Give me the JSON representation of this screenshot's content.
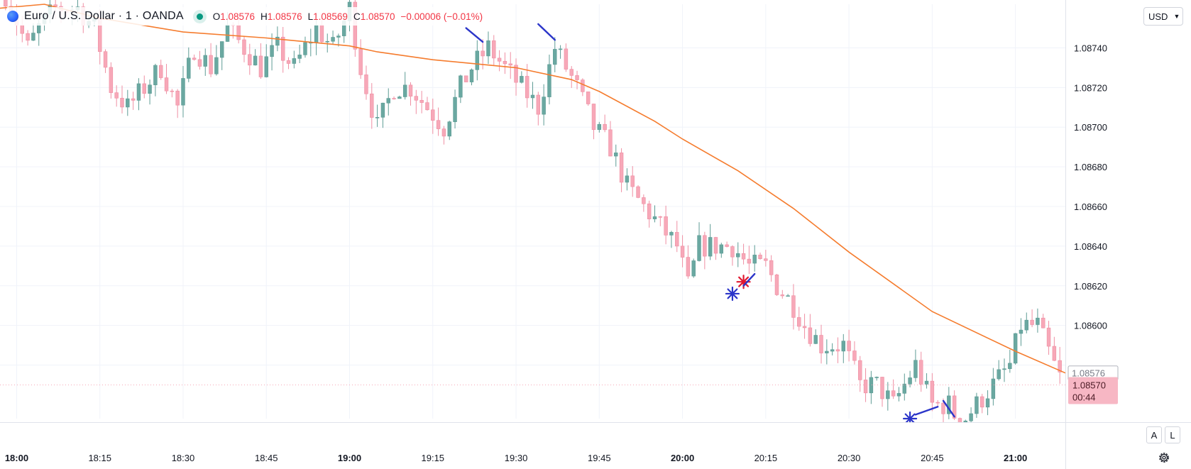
{
  "header": {
    "symbol_title": "Euro / U.S. Dollar · 1 · OANDA",
    "ohlc": [
      {
        "key": "O",
        "value": "1.08576"
      },
      {
        "key": "H",
        "value": "1.08576"
      },
      {
        "key": "L",
        "value": "1.08569"
      },
      {
        "key": "C",
        "value": "1.08570"
      }
    ],
    "change": "−0.00006 (−0.01%)",
    "status_color": "#089981"
  },
  "price_scale": {
    "currency_label": "USD",
    "auto_label": "A",
    "log_label": "L",
    "current_price": "1.08570",
    "countdown": "00:44",
    "ma_last_value": "1.08576"
  },
  "colors": {
    "up": "#6aa8a1",
    "down": "#f7a8b8",
    "ma": "#f57c2e",
    "grid": "#f0f3fa",
    "marks": "#2b35c9"
  },
  "chart_data": {
    "type": "candlestick",
    "title": "Euro / U.S. Dollar · 1 · OANDA",
    "ylim": [
      1.08553,
      1.08762
    ],
    "xlim": [
      "17:57",
      "21:09"
    ],
    "yticks": [
      1.086,
      1.0862,
      1.0864,
      1.0866,
      1.0868,
      1.087,
      1.0872,
      1.0874
    ],
    "ytick_labels": [
      "1.08600",
      "1.08620",
      "1.08640",
      "1.08660",
      "1.08680",
      "1.08700",
      "1.08720",
      "1.08740"
    ],
    "xticks": [
      "18:00",
      "18:15",
      "18:30",
      "18:45",
      "19:00",
      "19:15",
      "19:30",
      "19:45",
      "20:00",
      "20:15",
      "20:30",
      "20:45",
      "21:00"
    ],
    "xticks_bold": [
      "18:00",
      "19:00",
      "20:00",
      "21:00"
    ],
    "grid": true,
    "ohlc_anchors": [
      [
        "17:58",
        1.08767
      ],
      [
        "18:02",
        1.0874
      ],
      [
        "18:04",
        1.0875
      ],
      [
        "18:07",
        1.0876
      ],
      [
        "18:11",
        1.0876
      ],
      [
        "18:14",
        1.0875
      ],
      [
        "18:17",
        1.0872
      ],
      [
        "18:20",
        1.0871
      ],
      [
        "18:23",
        1.0872
      ],
      [
        "18:26",
        1.0873
      ],
      [
        "18:29",
        1.0871
      ],
      [
        "18:32",
        1.0874
      ],
      [
        "18:35",
        1.0873
      ],
      [
        "18:38",
        1.0875
      ],
      [
        "18:41",
        1.0874
      ],
      [
        "18:44",
        1.0873
      ],
      [
        "18:47",
        1.0874
      ],
      [
        "18:50",
        1.0873
      ],
      [
        "18:54",
        1.0875
      ],
      [
        "18:57",
        1.0874
      ],
      [
        "19:00",
        1.0876
      ],
      [
        "19:02",
        1.0873
      ],
      [
        "19:04",
        1.0871
      ],
      [
        "19:05",
        1.087
      ],
      [
        "19:08",
        1.0872
      ],
      [
        "19:11",
        1.0872
      ],
      [
        "19:14",
        1.0871
      ],
      [
        "19:17",
        1.087
      ],
      [
        "19:20",
        1.0872
      ],
      [
        "19:22",
        1.0873
      ],
      [
        "19:25",
        1.0874
      ],
      [
        "19:28",
        1.0873
      ],
      [
        "19:31",
        1.0872
      ],
      [
        "19:34",
        1.0871
      ],
      [
        "19:37",
        1.0874
      ],
      [
        "19:39",
        1.0873
      ],
      [
        "19:41",
        1.0872
      ],
      [
        "19:44",
        1.087
      ],
      [
        "19:47",
        1.0869
      ],
      [
        "19:50",
        1.0867
      ],
      [
        "19:53",
        1.0866
      ],
      [
        "19:56",
        1.0865
      ],
      [
        "19:59",
        1.0864
      ],
      [
        "20:01",
        1.0862
      ],
      [
        "20:03",
        1.0864
      ],
      [
        "20:06",
        1.0864
      ],
      [
        "20:09",
        1.0864
      ],
      [
        "20:12",
        1.0863
      ],
      [
        "20:15",
        1.0863
      ],
      [
        "20:17",
        1.0862
      ],
      [
        "20:20",
        1.0861
      ],
      [
        "20:22",
        1.086
      ],
      [
        "20:25",
        1.0859
      ],
      [
        "20:29",
        1.0859
      ],
      [
        "20:32",
        1.0857
      ],
      [
        "20:35",
        1.0857
      ],
      [
        "20:38",
        1.0856
      ],
      [
        "20:40",
        1.0857
      ],
      [
        "20:42",
        1.0858
      ],
      [
        "20:45",
        1.0856
      ],
      [
        "20:48",
        1.0856
      ],
      [
        "20:50",
        1.0855
      ],
      [
        "20:53",
        1.0856
      ],
      [
        "20:56",
        1.0857
      ],
      [
        "20:59",
        1.0858
      ],
      [
        "21:01",
        1.086
      ],
      [
        "21:04",
        1.086
      ],
      [
        "21:07",
        1.0858
      ],
      [
        "21:08",
        1.08574
      ]
    ],
    "moving_average": [
      [
        "17:57",
        1.0876
      ],
      [
        "18:05",
        1.08762
      ],
      [
        "18:15",
        1.08755
      ],
      [
        "18:30",
        1.08748
      ],
      [
        "18:45",
        1.08745
      ],
      [
        "19:00",
        1.08741
      ],
      [
        "19:05",
        1.08738
      ],
      [
        "19:15",
        1.08734
      ],
      [
        "19:30",
        1.0873
      ],
      [
        "19:40",
        1.08724
      ],
      [
        "19:45",
        1.08718
      ],
      [
        "19:55",
        1.08703
      ],
      [
        "20:00",
        1.08694
      ],
      [
        "20:10",
        1.08678
      ],
      [
        "20:20",
        1.08659
      ],
      [
        "20:30",
        1.08637
      ],
      [
        "20:35",
        1.08627
      ],
      [
        "20:45",
        1.08607
      ],
      [
        "21:00",
        1.08587
      ],
      [
        "21:09",
        1.08576
      ]
    ],
    "annotations": [
      {
        "kind": "asterisk",
        "color": "#2b35c9",
        "x": "20:09",
        "y": 1.08616
      },
      {
        "kind": "asterisk",
        "color": "#e01830",
        "x": "20:11",
        "y": 1.08622
      },
      {
        "kind": "asterisk",
        "color": "#2b35c9",
        "x": "20:41",
        "y": 1.08553
      },
      {
        "kind": "segment",
        "color": "#2b35c9",
        "from": [
          "19:21",
          1.0875
        ],
        "to": [
          "19:24",
          1.08743
        ]
      },
      {
        "kind": "segment",
        "color": "#2b35c9",
        "from": [
          "19:34",
          1.08752
        ],
        "to": [
          "19:37",
          1.08744
        ]
      },
      {
        "kind": "segment",
        "color": "#2b35c9",
        "from": [
          "20:11",
          1.0862
        ],
        "to": [
          "20:13",
          1.08626
        ]
      },
      {
        "kind": "segment",
        "color": "#2b35c9",
        "from": [
          "20:42",
          1.08555
        ],
        "to": [
          "20:46",
          1.08559
        ]
      },
      {
        "kind": "segment",
        "color": "#2b35c9",
        "from": [
          "20:47",
          1.08562
        ],
        "to": [
          "20:49",
          1.08554
        ]
      }
    ]
  }
}
